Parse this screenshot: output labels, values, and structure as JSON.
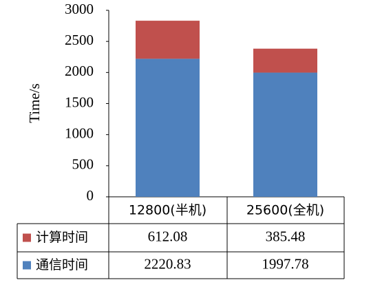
{
  "chart_data": {
    "type": "stacked-bar",
    "y_label": "Time/s",
    "categories": [
      "12800(半机)",
      "25600(全机)"
    ],
    "series": [
      {
        "name": "通信时间",
        "color": "#4f81bd",
        "values": [
          2220.83,
          1997.78
        ]
      },
      {
        "name": "计算时间",
        "color": "#c0504d",
        "values": [
          612.08,
          385.48
        ]
      }
    ],
    "ylim": [
      0,
      3000
    ],
    "yticks": [
      0,
      500,
      1000,
      1500,
      2000,
      2500,
      3000
    ],
    "grid": false
  }
}
